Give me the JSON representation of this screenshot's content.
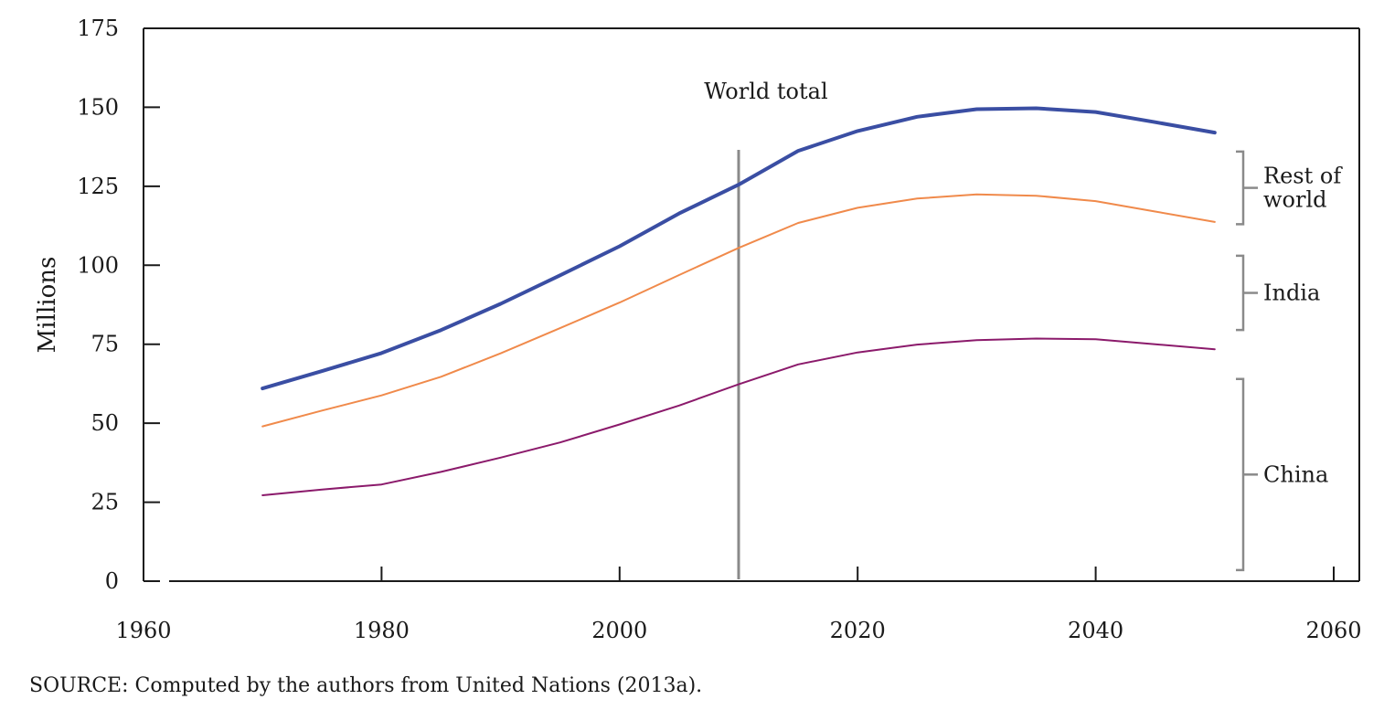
{
  "chart_data": {
    "type": "line",
    "title": "",
    "xlabel": "",
    "ylabel": "Millions",
    "xlim": [
      1960,
      2060
    ],
    "ylim": [
      0,
      175
    ],
    "xticks": [
      1960,
      1980,
      2000,
      2020,
      2040,
      2060
    ],
    "yticks": [
      0,
      25,
      50,
      75,
      100,
      125,
      150,
      175
    ],
    "grid": false,
    "x": [
      1970,
      1975,
      1980,
      1985,
      1990,
      1995,
      2000,
      2005,
      2010,
      2015,
      2020,
      2025,
      2030,
      2035,
      2040,
      2045,
      2050
    ],
    "series": [
      {
        "key": "world",
        "values": [
          61,
          66.5,
          72.2,
          79.5,
          87.8,
          96.8,
          106,
          116.4,
          125.5,
          136.2,
          142.5,
          147,
          149.4,
          149.7,
          148.5,
          145.3,
          142
        ],
        "color": "#3a4ea3",
        "width": 4
      },
      {
        "key": "china_plus_india",
        "values": [
          49,
          54,
          58.8,
          64.7,
          72.1,
          80.1,
          88.2,
          96.9,
          105.5,
          113.4,
          118.2,
          121.1,
          122.4,
          122,
          120.3,
          117,
          113.7
        ],
        "color": "#f08a4b",
        "width": 2
      },
      {
        "key": "china",
        "values": [
          27.2,
          29,
          30.6,
          34.6,
          39.1,
          43.9,
          49.6,
          55.6,
          62.3,
          68.6,
          72.4,
          74.9,
          76.3,
          76.8,
          76.6,
          75,
          73.4
        ],
        "color": "#8b1a6b",
        "width": 2
      }
    ],
    "vertical_marker": {
      "x": 2010,
      "color": "#8a8a8a"
    },
    "annotations": {
      "world_total": {
        "text": "World total",
        "x": 2012.3,
        "y": 155
      },
      "brackets": [
        {
          "lines": [
            "Rest of",
            "world"
          ],
          "from": 113,
          "to": 136
        },
        {
          "lines": [
            "India"
          ],
          "from": 79.5,
          "to": 103
        },
        {
          "lines": [
            "China"
          ],
          "from": 3.5,
          "to": 64
        }
      ]
    },
    "source": "SOURCE: Computed by the authors from United Nations (2013a)."
  }
}
